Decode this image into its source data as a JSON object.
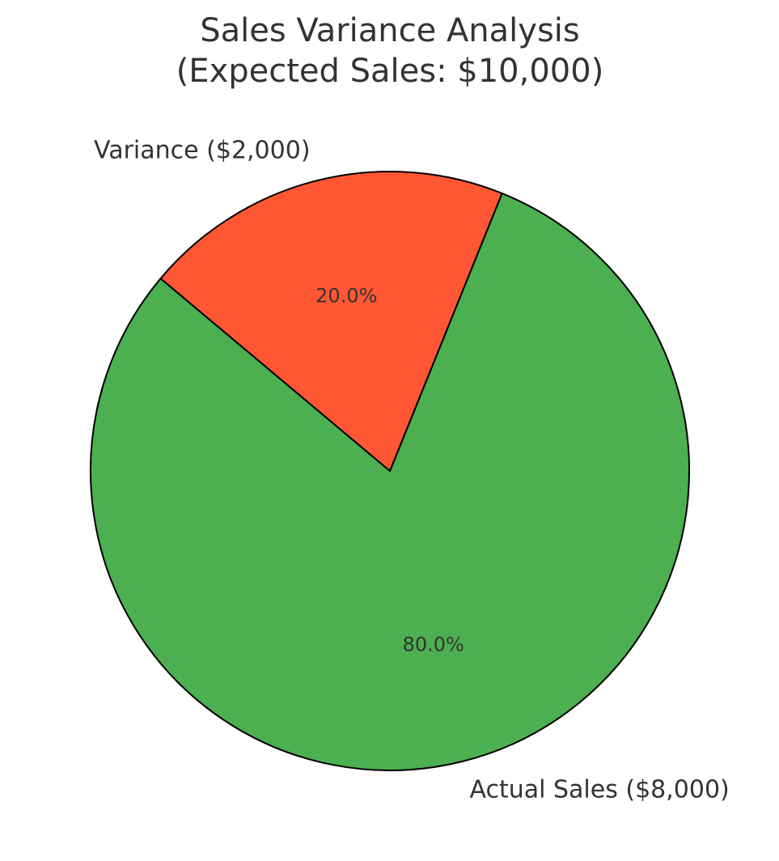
{
  "chart_data": {
    "type": "pie",
    "title": [
      "Sales Variance Analysis",
      "(Expected Sales: $10,000)"
    ],
    "categories": [
      "Actual Sales ($8,000)",
      "Variance ($2,000)"
    ],
    "values": [
      80,
      20
    ],
    "value_labels": [
      "80.0%",
      "20.0%"
    ],
    "colors": [
      "#4caf50",
      "#ff5733"
    ]
  }
}
